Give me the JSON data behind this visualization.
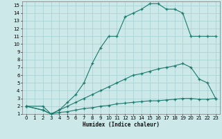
{
  "xlabel": "Humidex (Indice chaleur)",
  "bg_color": "#cce8e8",
  "grid_color": "#aad4d4",
  "line_color": "#1a7a6e",
  "xlim": [
    -0.5,
    23.5
  ],
  "ylim": [
    1,
    15.5
  ],
  "xticks": [
    0,
    1,
    2,
    3,
    4,
    5,
    6,
    7,
    8,
    9,
    10,
    11,
    12,
    13,
    14,
    15,
    16,
    17,
    18,
    19,
    20,
    21,
    22,
    23
  ],
  "yticks": [
    1,
    2,
    3,
    4,
    5,
    6,
    7,
    8,
    9,
    10,
    11,
    12,
    13,
    14,
    15
  ],
  "line1_x": [
    0,
    2,
    3,
    4,
    5,
    6,
    7,
    8,
    9,
    10,
    11,
    12,
    13,
    14,
    15,
    16,
    17,
    18,
    19,
    20,
    21,
    22,
    23
  ],
  "line1_y": [
    2,
    2,
    1,
    1.5,
    2.5,
    3.5,
    5,
    7.5,
    9.5,
    11,
    11,
    13.5,
    14,
    14.5,
    15.2,
    15.2,
    14.5,
    14.5,
    14,
    11,
    11,
    11,
    11
  ],
  "line2_x": [
    0,
    2,
    3,
    4,
    5,
    6,
    7,
    8,
    9,
    10,
    11,
    12,
    13,
    14,
    15,
    16,
    17,
    18,
    19,
    20,
    21,
    22,
    23
  ],
  "line2_y": [
    2,
    1.5,
    1,
    1.5,
    2,
    2.5,
    3,
    3.5,
    4,
    4.5,
    5,
    5.5,
    6,
    6.2,
    6.5,
    6.8,
    7,
    7.2,
    7.5,
    7,
    5.5,
    5,
    3
  ],
  "line3_x": [
    0,
    2,
    3,
    4,
    5,
    6,
    7,
    8,
    9,
    10,
    11,
    12,
    13,
    14,
    15,
    16,
    17,
    18,
    19,
    20,
    21,
    22,
    23
  ],
  "line3_y": [
    2,
    1.5,
    1,
    1.2,
    1.3,
    1.5,
    1.7,
    1.8,
    2.0,
    2.1,
    2.3,
    2.4,
    2.5,
    2.6,
    2.7,
    2.7,
    2.8,
    2.9,
    3.0,
    3.0,
    2.9,
    2.9,
    3.0
  ]
}
